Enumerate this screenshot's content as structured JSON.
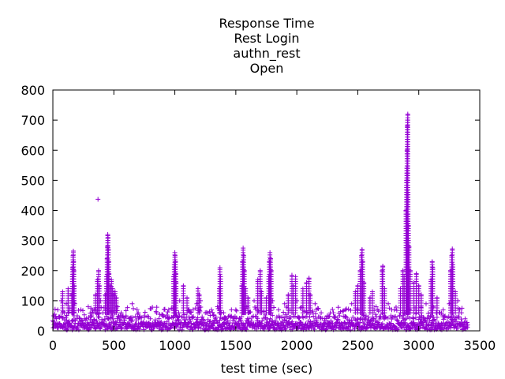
{
  "chart_data": {
    "type": "scatter",
    "title_lines": [
      "Response Time",
      "Rest Login",
      "authn_rest",
      "Open"
    ],
    "xlabel": "test time (sec)",
    "ylabel": "",
    "xlim": [
      0,
      3500
    ],
    "ylim": [
      0,
      800
    ],
    "x_ticks": [
      0,
      500,
      1000,
      1500,
      2000,
      2500,
      3000,
      3500
    ],
    "y_ticks": [
      0,
      100,
      200,
      300,
      400,
      500,
      600,
      700,
      800
    ],
    "grid": false,
    "marker": "+",
    "series": [
      {
        "color": "#9400d3",
        "points": [
          [
            5,
            30
          ],
          [
            15,
            55
          ],
          [
            25,
            20
          ],
          [
            40,
            70
          ],
          [
            55,
            45
          ],
          [
            70,
            100
          ],
          [
            80,
            130
          ],
          [
            95,
            60
          ],
          [
            110,
            90
          ],
          [
            125,
            140
          ],
          [
            140,
            75
          ],
          [
            155,
            120
          ],
          [
            160,
            180
          ],
          [
            162,
            210
          ],
          [
            165,
            250
          ],
          [
            168,
            265
          ],
          [
            170,
            230
          ],
          [
            172,
            200
          ],
          [
            175,
            150
          ],
          [
            180,
            90
          ],
          [
            200,
            50
          ],
          [
            230,
            70
          ],
          [
            260,
            40
          ],
          [
            290,
            80
          ],
          [
            320,
            60
          ],
          [
            350,
            120
          ],
          [
            365,
            170
          ],
          [
            370,
            437
          ],
          [
            375,
            200
          ],
          [
            380,
            150
          ],
          [
            390,
            100
          ],
          [
            410,
            60
          ],
          [
            430,
            120
          ],
          [
            440,
            180
          ],
          [
            445,
            240
          ],
          [
            448,
            280
          ],
          [
            450,
            320
          ],
          [
            452,
            310
          ],
          [
            455,
            270
          ],
          [
            458,
            230
          ],
          [
            460,
            190
          ],
          [
            470,
            150
          ],
          [
            480,
            170
          ],
          [
            490,
            140
          ],
          [
            500,
            120
          ],
          [
            510,
            130
          ],
          [
            520,
            110
          ],
          [
            530,
            80
          ],
          [
            560,
            60
          ],
          [
            600,
            50
          ],
          [
            650,
            90
          ],
          [
            700,
            60
          ],
          [
            750,
            50
          ],
          [
            800,
            40
          ],
          [
            850,
            60
          ],
          [
            900,
            50
          ],
          [
            950,
            70
          ],
          [
            990,
            180
          ],
          [
            995,
            220
          ],
          [
            1000,
            260
          ],
          [
            1002,
            250
          ],
          [
            1005,
            230
          ],
          [
            1008,
            190
          ],
          [
            1010,
            160
          ],
          [
            1040,
            100
          ],
          [
            1070,
            150
          ],
          [
            1100,
            110
          ],
          [
            1150,
            70
          ],
          [
            1180,
            90
          ],
          [
            1190,
            140
          ],
          [
            1200,
            120
          ],
          [
            1210,
            100
          ],
          [
            1250,
            60
          ],
          [
            1300,
            70
          ],
          [
            1350,
            80
          ],
          [
            1365,
            140
          ],
          [
            1370,
            210
          ],
          [
            1375,
            180
          ],
          [
            1400,
            60
          ],
          [
            1450,
            50
          ],
          [
            1500,
            70
          ],
          [
            1550,
            150
          ],
          [
            1555,
            230
          ],
          [
            1560,
            275
          ],
          [
            1565,
            250
          ],
          [
            1570,
            200
          ],
          [
            1580,
            140
          ],
          [
            1600,
            110
          ],
          [
            1650,
            100
          ],
          [
            1680,
            170
          ],
          [
            1700,
            200
          ],
          [
            1710,
            130
          ],
          [
            1750,
            110
          ],
          [
            1770,
            180
          ],
          [
            1775,
            230
          ],
          [
            1780,
            260
          ],
          [
            1785,
            240
          ],
          [
            1790,
            200
          ],
          [
            1800,
            100
          ],
          [
            1850,
            70
          ],
          [
            1900,
            90
          ],
          [
            1930,
            120
          ],
          [
            1960,
            185
          ],
          [
            1970,
            150
          ],
          [
            1990,
            180
          ],
          [
            2000,
            100
          ],
          [
            2050,
            140
          ],
          [
            2080,
            160
          ],
          [
            2100,
            175
          ],
          [
            2110,
            120
          ],
          [
            2150,
            90
          ],
          [
            2200,
            60
          ],
          [
            2250,
            50
          ],
          [
            2300,
            60
          ],
          [
            2350,
            50
          ],
          [
            2400,
            70
          ],
          [
            2450,
            90
          ],
          [
            2480,
            130
          ],
          [
            2500,
            150
          ],
          [
            2520,
            200
          ],
          [
            2530,
            250
          ],
          [
            2535,
            270
          ],
          [
            2540,
            230
          ],
          [
            2550,
            160
          ],
          [
            2600,
            110
          ],
          [
            2620,
            130
          ],
          [
            2650,
            80
          ],
          [
            2700,
            200
          ],
          [
            2705,
            215
          ],
          [
            2720,
            140
          ],
          [
            2750,
            90
          ],
          [
            2800,
            70
          ],
          [
            2850,
            140
          ],
          [
            2870,
            200
          ],
          [
            2880,
            180
          ],
          [
            2895,
            400
          ],
          [
            2900,
            500
          ],
          [
            2902,
            540
          ],
          [
            2904,
            600
          ],
          [
            2906,
            680
          ],
          [
            2908,
            700
          ],
          [
            2910,
            720
          ],
          [
            2912,
            460
          ],
          [
            2915,
            350
          ],
          [
            2920,
            280
          ],
          [
            2930,
            200
          ],
          [
            2960,
            160
          ],
          [
            2980,
            190
          ],
          [
            3000,
            150
          ],
          [
            3020,
            120
          ],
          [
            3060,
            90
          ],
          [
            3100,
            170
          ],
          [
            3110,
            230
          ],
          [
            3115,
            210
          ],
          [
            3150,
            110
          ],
          [
            3200,
            70
          ],
          [
            3250,
            90
          ],
          [
            3260,
            200
          ],
          [
            3270,
            250
          ],
          [
            3275,
            272
          ],
          [
            3280,
            220
          ],
          [
            3300,
            130
          ],
          [
            3320,
            100
          ],
          [
            3350,
            60
          ],
          [
            3380,
            40
          ],
          [
            3400,
            20
          ]
        ]
      }
    ]
  }
}
